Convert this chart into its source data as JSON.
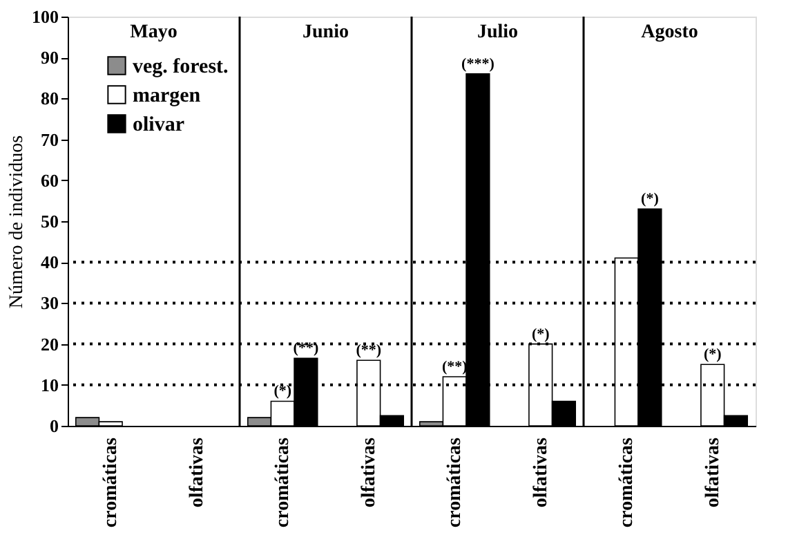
{
  "chart_data": {
    "type": "bar",
    "ylabel": "Número de individuos",
    "categories": [
      "cromáticas",
      "olfativas",
      "cromáticas",
      "olfativas",
      "cromáticas",
      "olfativas",
      "cromáticas",
      "olfativas"
    ],
    "series": [
      {
        "name": "veg. forest.",
        "color": "#8c8c8c",
        "values": [
          2,
          null,
          2,
          null,
          1,
          null,
          null,
          null
        ],
        "value_labels": [
          null,
          null,
          null,
          null,
          null,
          null,
          null,
          null
        ]
      },
      {
        "name": "margen",
        "color": "#ffffff",
        "values": [
          1,
          null,
          6,
          16,
          12,
          20,
          41,
          15
        ],
        "value_labels": [
          null,
          null,
          "(*)",
          "(**)",
          "(**)",
          "(*)",
          null,
          "(*)"
        ]
      },
      {
        "name": "olivar",
        "color": "#000000",
        "values": [
          null,
          null,
          16.5,
          2.5,
          86,
          6,
          53,
          2.5
        ],
        "value_labels": [
          null,
          null,
          "(**)",
          null,
          "(***)",
          null,
          "(*)",
          null
        ]
      }
    ],
    "annotations": [
      "Mayo",
      "Junio",
      "Julio",
      "Agosto"
    ],
    "ylim": [
      0,
      100
    ],
    "yticks": [
      0,
      10,
      20,
      30,
      40,
      50,
      60,
      70,
      80,
      90,
      100
    ],
    "ref_lines": [
      {
        "axis": "y",
        "value": 10,
        "line_style": "dotted"
      },
      {
        "axis": "y",
        "value": 20,
        "line_style": "dotted"
      },
      {
        "axis": "y",
        "value": 30,
        "line_style": "dotted"
      },
      {
        "axis": "y",
        "value": 40,
        "line_style": "dotted"
      }
    ],
    "legend": "top left"
  }
}
